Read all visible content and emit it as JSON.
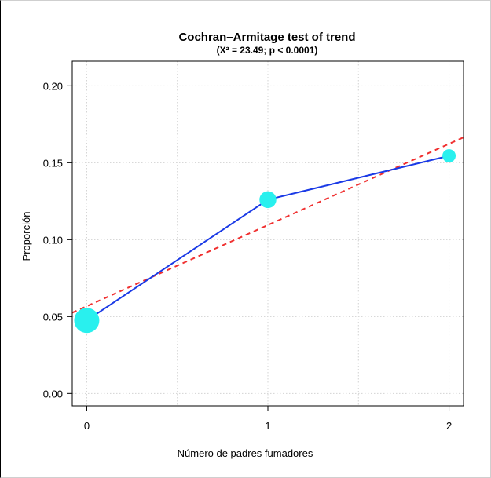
{
  "chart_data": {
    "type": "line",
    "title": "Cochran–Armitage test of trend",
    "subtitle": "(X² = 23.49; p < 0.0001)",
    "xlabel": "Número de padres fumadores",
    "ylabel": "Proporción",
    "x_ticks": [
      "0",
      "1",
      "2"
    ],
    "y_ticks": [
      "0.00",
      "0.05",
      "0.10",
      "0.15",
      "0.20"
    ],
    "xlim": [
      -0.08,
      2.08
    ],
    "ylim": [
      -0.008,
      0.216
    ],
    "grid": true,
    "series": [
      {
        "x": [
          0,
          1,
          2
        ],
        "values": [
          0.0475,
          0.126,
          0.1545
        ],
        "color": "#1a3ae6"
      }
    ],
    "point_weights": [
      1.0,
      0.45,
      0.28
    ],
    "point_color": "#29f0ee",
    "trend_line": {
      "x": [
        -0.08,
        2.08
      ],
      "values": [
        0.0525,
        0.1665
      ],
      "color": "#f03030"
    }
  }
}
